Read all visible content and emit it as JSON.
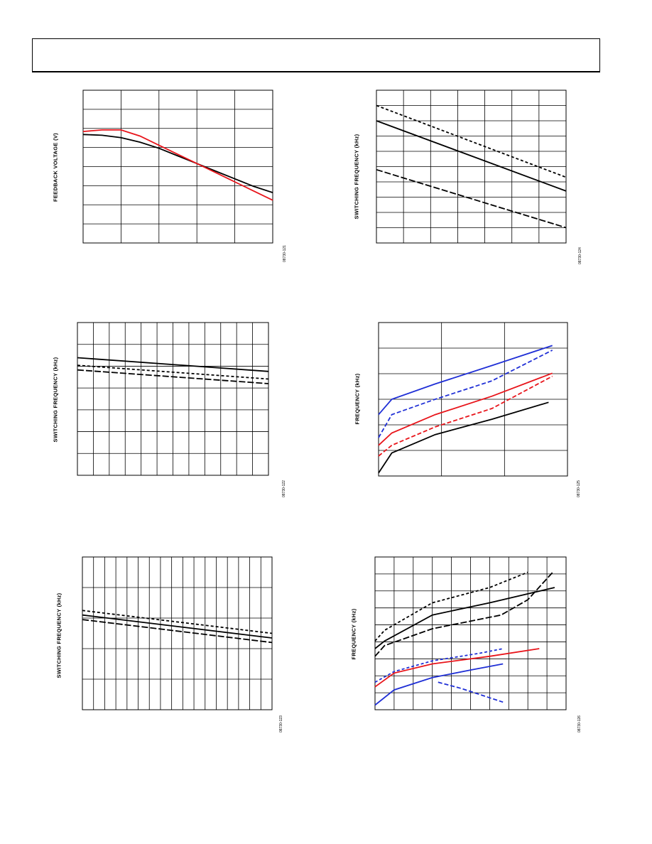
{
  "figures": [
    {
      "id": "fig-feedback",
      "figure_id": "08730-121",
      "ylabel": "FEEDBACK VOLTAGE (V)"
    },
    {
      "id": "fig-sw-top",
      "figure_id": "08730-124",
      "ylabel": "SWITCHING FREQUENCY (kHz)"
    },
    {
      "id": "fig-sw-mid",
      "figure_id": "08730-122",
      "ylabel": "SWITCHING FREQUENCY (kHz)"
    },
    {
      "id": "fig-freq-mid",
      "figure_id": "08730-125",
      "ylabel": "FREQUENCY (kHz)"
    },
    {
      "id": "fig-sw-bot",
      "figure_id": "08730-123",
      "ylabel": "SWITCHING FREQUENCY (kHz)"
    },
    {
      "id": "fig-freq-bot",
      "figure_id": "08730-126",
      "ylabel": "FREQUENCY (kHz)"
    }
  ],
  "chart_data": [
    {
      "type": "line",
      "colors": [
        "#000000",
        "#e8141a"
      ],
      "series": [
        {
          "color": "#000000",
          "x": [
            0,
            0.1,
            0.2,
            0.3,
            0.4,
            0.5,
            0.6,
            0.7,
            0.8,
            0.9,
            1.0
          ],
          "y": [
            0.29,
            0.295,
            0.31,
            0.34,
            0.38,
            0.43,
            0.48,
            0.53,
            0.58,
            0.63,
            0.67
          ]
        },
        {
          "color": "#e8141a",
          "x": [
            0,
            0.1,
            0.2,
            0.3,
            0.4,
            0.5,
            0.6,
            0.7,
            0.8,
            0.9,
            1.0
          ],
          "y": [
            0.27,
            0.26,
            0.26,
            0.3,
            0.36,
            0.42,
            0.48,
            0.54,
            0.6,
            0.66,
            0.72
          ]
        }
      ]
    },
    {
      "type": "line",
      "series": [
        {
          "style": "dash-short",
          "x": [
            0,
            1
          ],
          "y": [
            0.1,
            0.57
          ]
        },
        {
          "style": "solid",
          "x": [
            0,
            1
          ],
          "y": [
            0.2,
            0.66
          ]
        },
        {
          "style": "dash-long",
          "x": [
            0,
            1
          ],
          "y": [
            0.52,
            0.9
          ]
        }
      ]
    },
    {
      "type": "line",
      "series": [
        {
          "style": "solid",
          "x": [
            0,
            1
          ],
          "y": [
            0.23,
            0.32
          ]
        },
        {
          "style": "dash-short",
          "x": [
            0,
            1
          ],
          "y": [
            0.28,
            0.37
          ]
        },
        {
          "style": "dash-long",
          "x": [
            0,
            1
          ],
          "y": [
            0.31,
            0.4
          ]
        }
      ]
    },
    {
      "type": "line",
      "colors": [
        "#1f2fd6",
        "#000000",
        "#e8141a"
      ],
      "series": [
        {
          "color": "#1f2fd6",
          "style": "solid",
          "x": [
            0,
            0.07,
            0.3,
            0.6,
            0.92
          ],
          "y": [
            0.6,
            0.5,
            0.4,
            0.28,
            0.15
          ]
        },
        {
          "color": "#1f2fd6",
          "style": "dash",
          "x": [
            0,
            0.07,
            0.3,
            0.6,
            0.92
          ],
          "y": [
            0.75,
            0.6,
            0.5,
            0.38,
            0.18
          ]
        },
        {
          "color": "#e8141a",
          "style": "solid",
          "x": [
            0,
            0.07,
            0.3,
            0.6,
            0.92
          ],
          "y": [
            0.8,
            0.72,
            0.6,
            0.48,
            0.33
          ]
        },
        {
          "color": "#e8141a",
          "style": "dash",
          "x": [
            0,
            0.07,
            0.3,
            0.6,
            0.92
          ],
          "y": [
            0.87,
            0.8,
            0.68,
            0.56,
            0.35
          ]
        },
        {
          "color": "#000000",
          "style": "solid",
          "x": [
            0,
            0.07,
            0.3,
            0.6,
            0.9
          ],
          "y": [
            0.98,
            0.85,
            0.73,
            0.63,
            0.52
          ]
        }
      ]
    },
    {
      "type": "line",
      "series": [
        {
          "style": "dash-short",
          "x": [
            0,
            1
          ],
          "y": [
            0.35,
            0.5
          ]
        },
        {
          "style": "solid",
          "x": [
            0,
            1
          ],
          "y": [
            0.38,
            0.53
          ]
        },
        {
          "style": "dash-long",
          "x": [
            0,
            1
          ],
          "y": [
            0.41,
            0.56
          ]
        }
      ]
    },
    {
      "type": "line",
      "colors": [
        "#1f2fd6",
        "#000000",
        "#e8141a"
      ],
      "series": [
        {
          "color": "#000000",
          "style": "dash-short",
          "x": [
            0,
            0.05,
            0.3,
            0.6,
            0.8
          ],
          "y": [
            0.55,
            0.48,
            0.3,
            0.2,
            0.1
          ]
        },
        {
          "color": "#000000",
          "style": "solid",
          "x": [
            0,
            0.05,
            0.3,
            0.6,
            0.94
          ],
          "y": [
            0.6,
            0.55,
            0.38,
            0.3,
            0.2
          ]
        },
        {
          "color": "#000000",
          "style": "dash-long",
          "x": [
            0,
            0.05,
            0.3,
            0.66,
            0.8,
            0.93
          ],
          "y": [
            0.65,
            0.58,
            0.47,
            0.38,
            0.28,
            0.1
          ]
        },
        {
          "color": "#1f2fd6",
          "style": "dash-short",
          "x": [
            0,
            0.1,
            0.3,
            0.55,
            0.67
          ],
          "y": [
            0.82,
            0.75,
            0.68,
            0.63,
            0.6
          ]
        },
        {
          "color": "#e8141a",
          "style": "solid",
          "x": [
            0,
            0.1,
            0.3,
            0.6,
            0.86
          ],
          "y": [
            0.85,
            0.76,
            0.7,
            0.65,
            0.6
          ]
        },
        {
          "color": "#1f2fd6",
          "style": "solid",
          "x": [
            0,
            0.1,
            0.3,
            0.5,
            0.67
          ],
          "y": [
            0.97,
            0.87,
            0.79,
            0.74,
            0.7
          ]
        },
        {
          "color": "#1f2fd6",
          "style": "dash",
          "x": [
            0.33,
            0.45,
            0.67
          ],
          "y": [
            0.82,
            0.86,
            0.95
          ]
        }
      ]
    }
  ]
}
